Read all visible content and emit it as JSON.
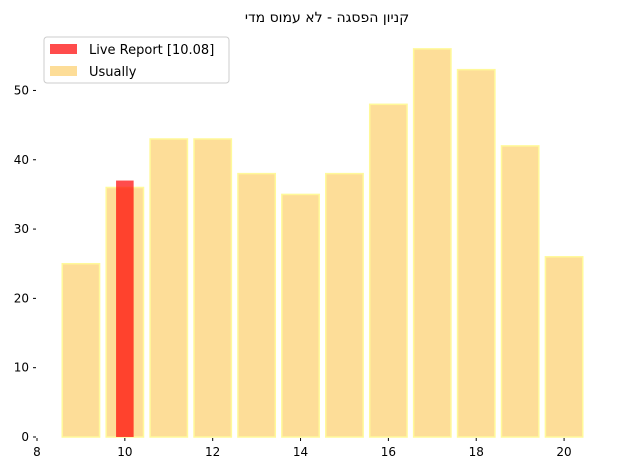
{
  "chart_data": {
    "type": "bar",
    "title": "קניון הפסגה  - לא עמוס מדי",
    "xlabel": "",
    "ylabel": "",
    "xlim": [
      8,
      21
    ],
    "ylim": [
      0,
      58
    ],
    "x_ticks": [
      8,
      10,
      12,
      14,
      16,
      18,
      20
    ],
    "y_ticks": [
      0,
      10,
      20,
      30,
      40,
      50
    ],
    "grid": false,
    "legend_position": "top-left",
    "series": [
      {
        "name": "Live Report [10.08]",
        "color": "#ff0000",
        "opacity": 0.7,
        "x": [
          10
        ],
        "values": [
          37
        ],
        "bar_width": 0.4
      },
      {
        "name": "Usually",
        "color": "#fcc653",
        "edge_color": "#fff99a",
        "opacity": 0.6,
        "x": [
          9,
          10,
          11,
          12,
          13,
          14,
          15,
          16,
          17,
          18,
          19,
          20
        ],
        "values": [
          25,
          36,
          43,
          43,
          38,
          35,
          38,
          48,
          56,
          53,
          42,
          26
        ],
        "bar_width": 0.85
      }
    ]
  }
}
